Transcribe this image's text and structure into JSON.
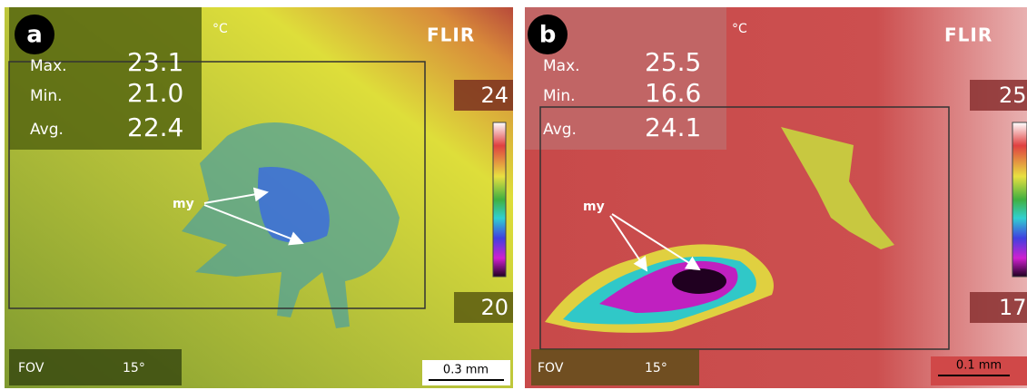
{
  "panels": [
    {
      "label": "a",
      "unit": "°C",
      "brand": "FLIR",
      "stats": [
        {
          "name": "Max.",
          "value": "23.1"
        },
        {
          "name": "Min.",
          "value": "21.0"
        },
        {
          "name": "Avg.",
          "value": "22.4"
        }
      ],
      "scale_max": "24",
      "scale_min": "20",
      "annotation": "my",
      "fov_label": "FOV",
      "fov_value": "15°",
      "scale_bar": "0.3 mm"
    },
    {
      "label": "b",
      "unit": "°C",
      "brand": "FLIR",
      "stats": [
        {
          "name": "Max.",
          "value": "25.5"
        },
        {
          "name": "Min.",
          "value": "16.6"
        },
        {
          "name": "Avg.",
          "value": "24.1"
        }
      ],
      "scale_max": "25",
      "scale_min": "17",
      "annotation": "my",
      "fov_label": "FOV",
      "fov_value": "15°",
      "scale_bar": "0.1 mm"
    }
  ]
}
